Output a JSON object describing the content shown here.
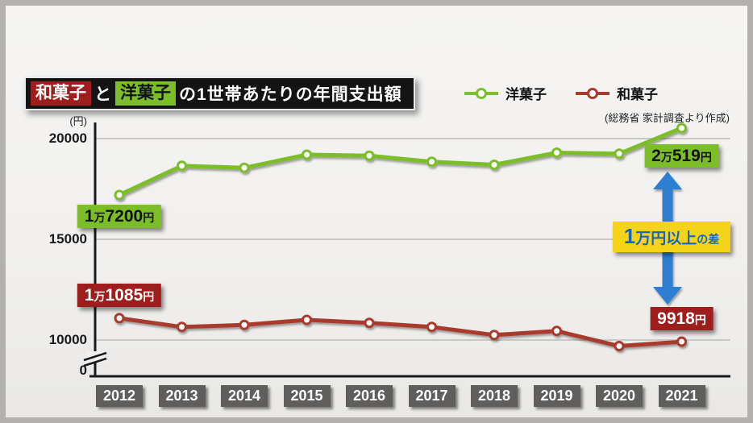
{
  "title": {
    "wagashi": "和菓子",
    "connector": "と",
    "yogashi": "洋菓子",
    "rest": "の1世帯あたりの年間支出額"
  },
  "legend": [
    {
      "label": "洋菓子",
      "color": "#7cbd2a"
    },
    {
      "label": "和菓子",
      "color": "#a93a2e"
    }
  ],
  "source_note": "(総務省 家計調査より作成)",
  "axis": {
    "unit": "(円)",
    "tick_labels": [
      "20000",
      "15000",
      "10000",
      "0"
    ],
    "has_break": true
  },
  "chart_data": {
    "type": "line",
    "title": "和菓子と洋菓子の1世帯あたりの年間支出額",
    "ylabel": "円",
    "categories": [
      "2012",
      "2013",
      "2014",
      "2015",
      "2016",
      "2017",
      "2018",
      "2019",
      "2020",
      "2021"
    ],
    "series": [
      {
        "name": "洋菓子",
        "color": "#7cbd2a",
        "values": [
          17200,
          18650,
          18550,
          19200,
          19150,
          18850,
          18700,
          19300,
          19250,
          20519
        ]
      },
      {
        "name": "和菓子",
        "color": "#a93a2e",
        "values": [
          11085,
          10650,
          10750,
          11000,
          10850,
          10650,
          10250,
          10450,
          9700,
          9918
        ]
      }
    ],
    "y_ticks": [
      20000,
      15000,
      10000,
      0
    ],
    "gridlines": [
      20000,
      15000,
      10000
    ],
    "y_axis_break": true,
    "legend_position": "top-right",
    "data_labels": {
      "洋菓子": {
        "2012": "1万7200円",
        "2021": "2万519円"
      },
      "和菓子": {
        "2012": "1万1085円",
        "2021": "9918円"
      }
    }
  },
  "badges": {
    "yogashi_start": {
      "segments": [
        {
          "t": "1",
          "s": "lg"
        },
        {
          "t": "万",
          "s": "sm"
        },
        {
          "t": "7200",
          "s": "lg"
        },
        {
          "t": "円",
          "s": "sm"
        }
      ],
      "bg": "#7cbd2a",
      "fg": "#111111"
    },
    "yogashi_end": {
      "segments": [
        {
          "t": "2",
          "s": "lg"
        },
        {
          "t": "万",
          "s": "sm"
        },
        {
          "t": "519",
          "s": "lg"
        },
        {
          "t": "円",
          "s": "sm"
        }
      ],
      "bg": "#7cbd2a",
      "fg": "#111111"
    },
    "wagashi_start": {
      "segments": [
        {
          "t": "1",
          "s": "lg"
        },
        {
          "t": "万",
          "s": "sm"
        },
        {
          "t": "1085",
          "s": "lg"
        },
        {
          "t": "円",
          "s": "sm"
        }
      ],
      "bg": "#9e1e1e",
      "fg": "#ffffff"
    },
    "wagashi_end": {
      "segments": [
        {
          "t": "9918",
          "s": "lg"
        },
        {
          "t": "円",
          "s": "sm"
        }
      ],
      "bg": "#9e1e1e",
      "fg": "#ffffff"
    }
  },
  "annotation": {
    "full_text": "1万円以上の差",
    "text_segments": [
      {
        "t": "1",
        "s": "xl"
      },
      {
        "t": "万円以上",
        "s": "lg"
      },
      {
        "t": "の差",
        "s": "sm"
      }
    ],
    "box_bg": "#f5d319",
    "text_color": "#1565c0",
    "arrow_color": "#2d7fd2"
  },
  "colors": {
    "green": "#7cbd2a",
    "red_line": "#a93a2e",
    "red_badge": "#9e1e1e",
    "blue": "#2d7fd2",
    "yellow": "#f5d319",
    "axis": "#1a1a1a",
    "grid": "#c9c8c6",
    "year_box": "#5f5e5c",
    "panel_bg": "#f1f0ee"
  }
}
